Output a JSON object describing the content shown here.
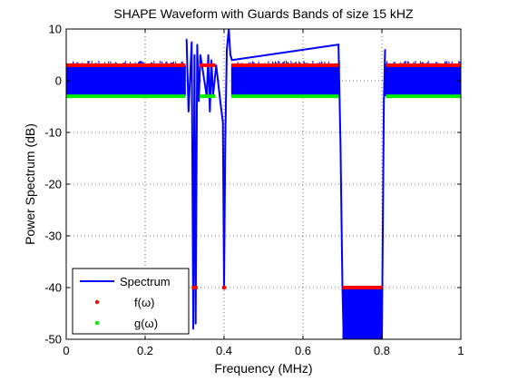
{
  "chart_data": {
    "type": "line",
    "title": "SHAPE Waveform with Guards Bands of size 15 kHZ",
    "xlabel": "Frequency (MHz)",
    "ylabel": "Power Spectrum (dB)",
    "xlim": [
      0,
      1
    ],
    "ylim": [
      -50,
      10
    ],
    "xticks": [
      0,
      0.2,
      0.4,
      0.6,
      0.8,
      1
    ],
    "xtick_labels": [
      "0",
      "0.2",
      "0.4",
      "0.6",
      "0.8",
      "1"
    ],
    "yticks": [
      -50,
      -40,
      -30,
      -20,
      -10,
      0,
      10
    ],
    "ytick_labels": [
      "-50",
      "-40",
      "-30",
      "-20",
      "-10",
      "0",
      "10"
    ],
    "grid": true,
    "legend_position": "bottom-left",
    "series": [
      {
        "name": "Spectrum",
        "style": "line",
        "color": "#0000ff",
        "band": {
          "low": -3,
          "high": 3
        },
        "x": [
          0.305,
          0.31,
          0.318,
          0.322,
          0.325,
          0.328,
          0.332,
          0.336,
          0.34,
          0.356,
          0.36,
          0.364,
          0.368,
          0.372,
          0.38,
          0.392,
          0.397,
          0.4,
          0.403,
          0.407,
          0.412,
          0.416,
          0.42,
          0.69,
          0.695,
          0.7,
          0.703,
          0.8,
          0.805,
          0.808
        ],
        "y": [
          8,
          -6,
          7.5,
          -48,
          5,
          -47,
          7,
          -4,
          5,
          -3,
          5,
          -6,
          4,
          -3,
          3,
          -5,
          -8,
          -40,
          -12,
          6,
          10,
          5,
          4,
          7,
          -12,
          -40,
          -50,
          -50,
          -4,
          6
        ]
      },
      {
        "name": "f(ω)",
        "style": "markers",
        "color": "#ff0000",
        "segments": [
          {
            "x": [
              0,
              0.302
            ],
            "y": 3
          },
          {
            "x": [
              0.338,
              0.378
            ],
            "y": 3
          },
          {
            "x": [
              0.418,
              0.69
            ],
            "y": 3
          },
          {
            "x": [
              0.81,
              1
            ],
            "y": 3
          },
          {
            "x": [
              0.318,
              0.333
            ],
            "y": -40
          },
          {
            "x": [
              0.7,
              0.8
            ],
            "y": -40
          }
        ],
        "x": [
          0.4
        ],
        "y": [
          -40
        ]
      },
      {
        "name": "g(ω)",
        "style": "markers",
        "color": "#00ee00",
        "segments": [
          {
            "x": [
              0,
              0.302
            ],
            "y": -3
          },
          {
            "x": [
              0.338,
              0.378
            ],
            "y": -3
          },
          {
            "x": [
              0.418,
              0.69
            ],
            "y": -3
          },
          {
            "x": [
              0.81,
              1
            ],
            "y": -3
          }
        ]
      }
    ]
  }
}
